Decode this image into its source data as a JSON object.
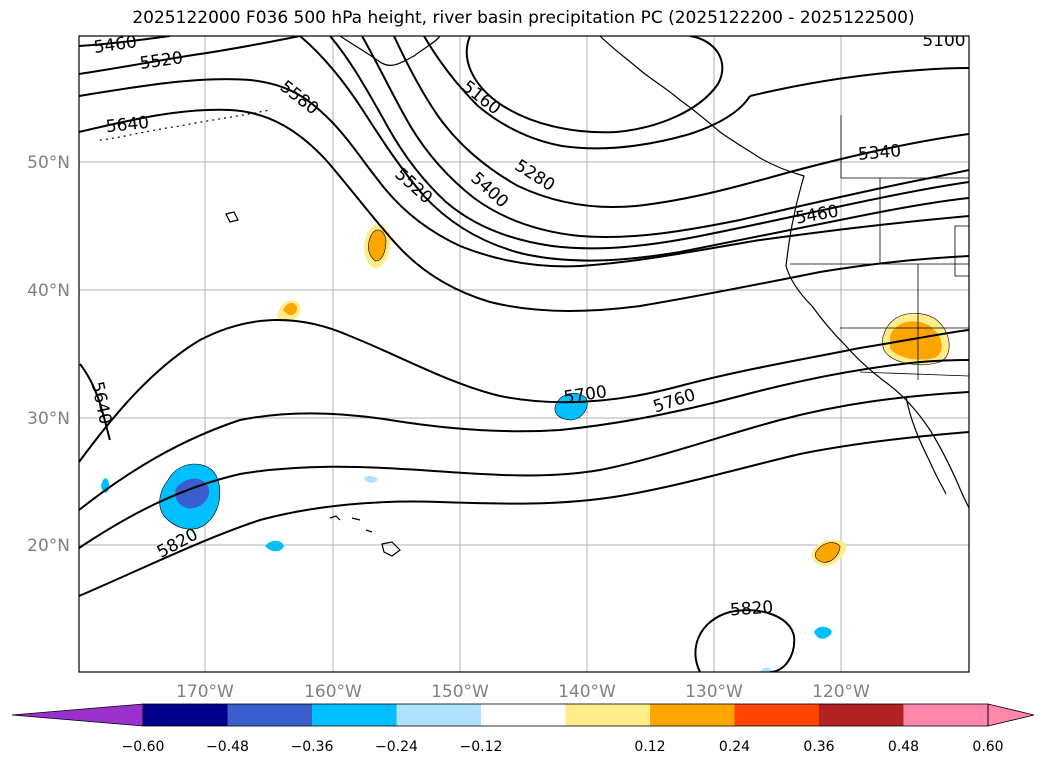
{
  "title": "2025122000 F036 500 hPa height, river basin precipitation PC (2025122200 - 2025122500)",
  "map": {
    "lat_labels": [
      "50°N",
      "40°N",
      "30°N",
      "20°N"
    ],
    "lon_labels": [
      "170°W",
      "160°W",
      "150°W",
      "140°W",
      "130°W",
      "120°W"
    ],
    "contour_labels": [
      "5460",
      "5520",
      "5640",
      "5580",
      "5160",
      "5520",
      "5400",
      "5280",
      "5340",
      "5460",
      "5100",
      "5640",
      "5700",
      "5760",
      "5820",
      "5820"
    ]
  },
  "colorbar": {
    "tick_labels": [
      "−0.60",
      "−0.48",
      "−0.36",
      "−0.24",
      "−0.12",
      "0.12",
      "0.24",
      "0.36",
      "0.48",
      "0.60"
    ],
    "colors": [
      "#9932cc",
      "#00008b",
      "#3a5fcd",
      "#00bfff",
      "#b0e2ff",
      "#ffffff",
      "#ffec8b",
      "#ffa500",
      "#ff4500",
      "#b22222",
      "#ff88aa",
      "#ff88aa"
    ]
  },
  "colors": {
    "text_axis": "#808080",
    "grid": "#b0b0b0",
    "contour": "#000000"
  }
}
